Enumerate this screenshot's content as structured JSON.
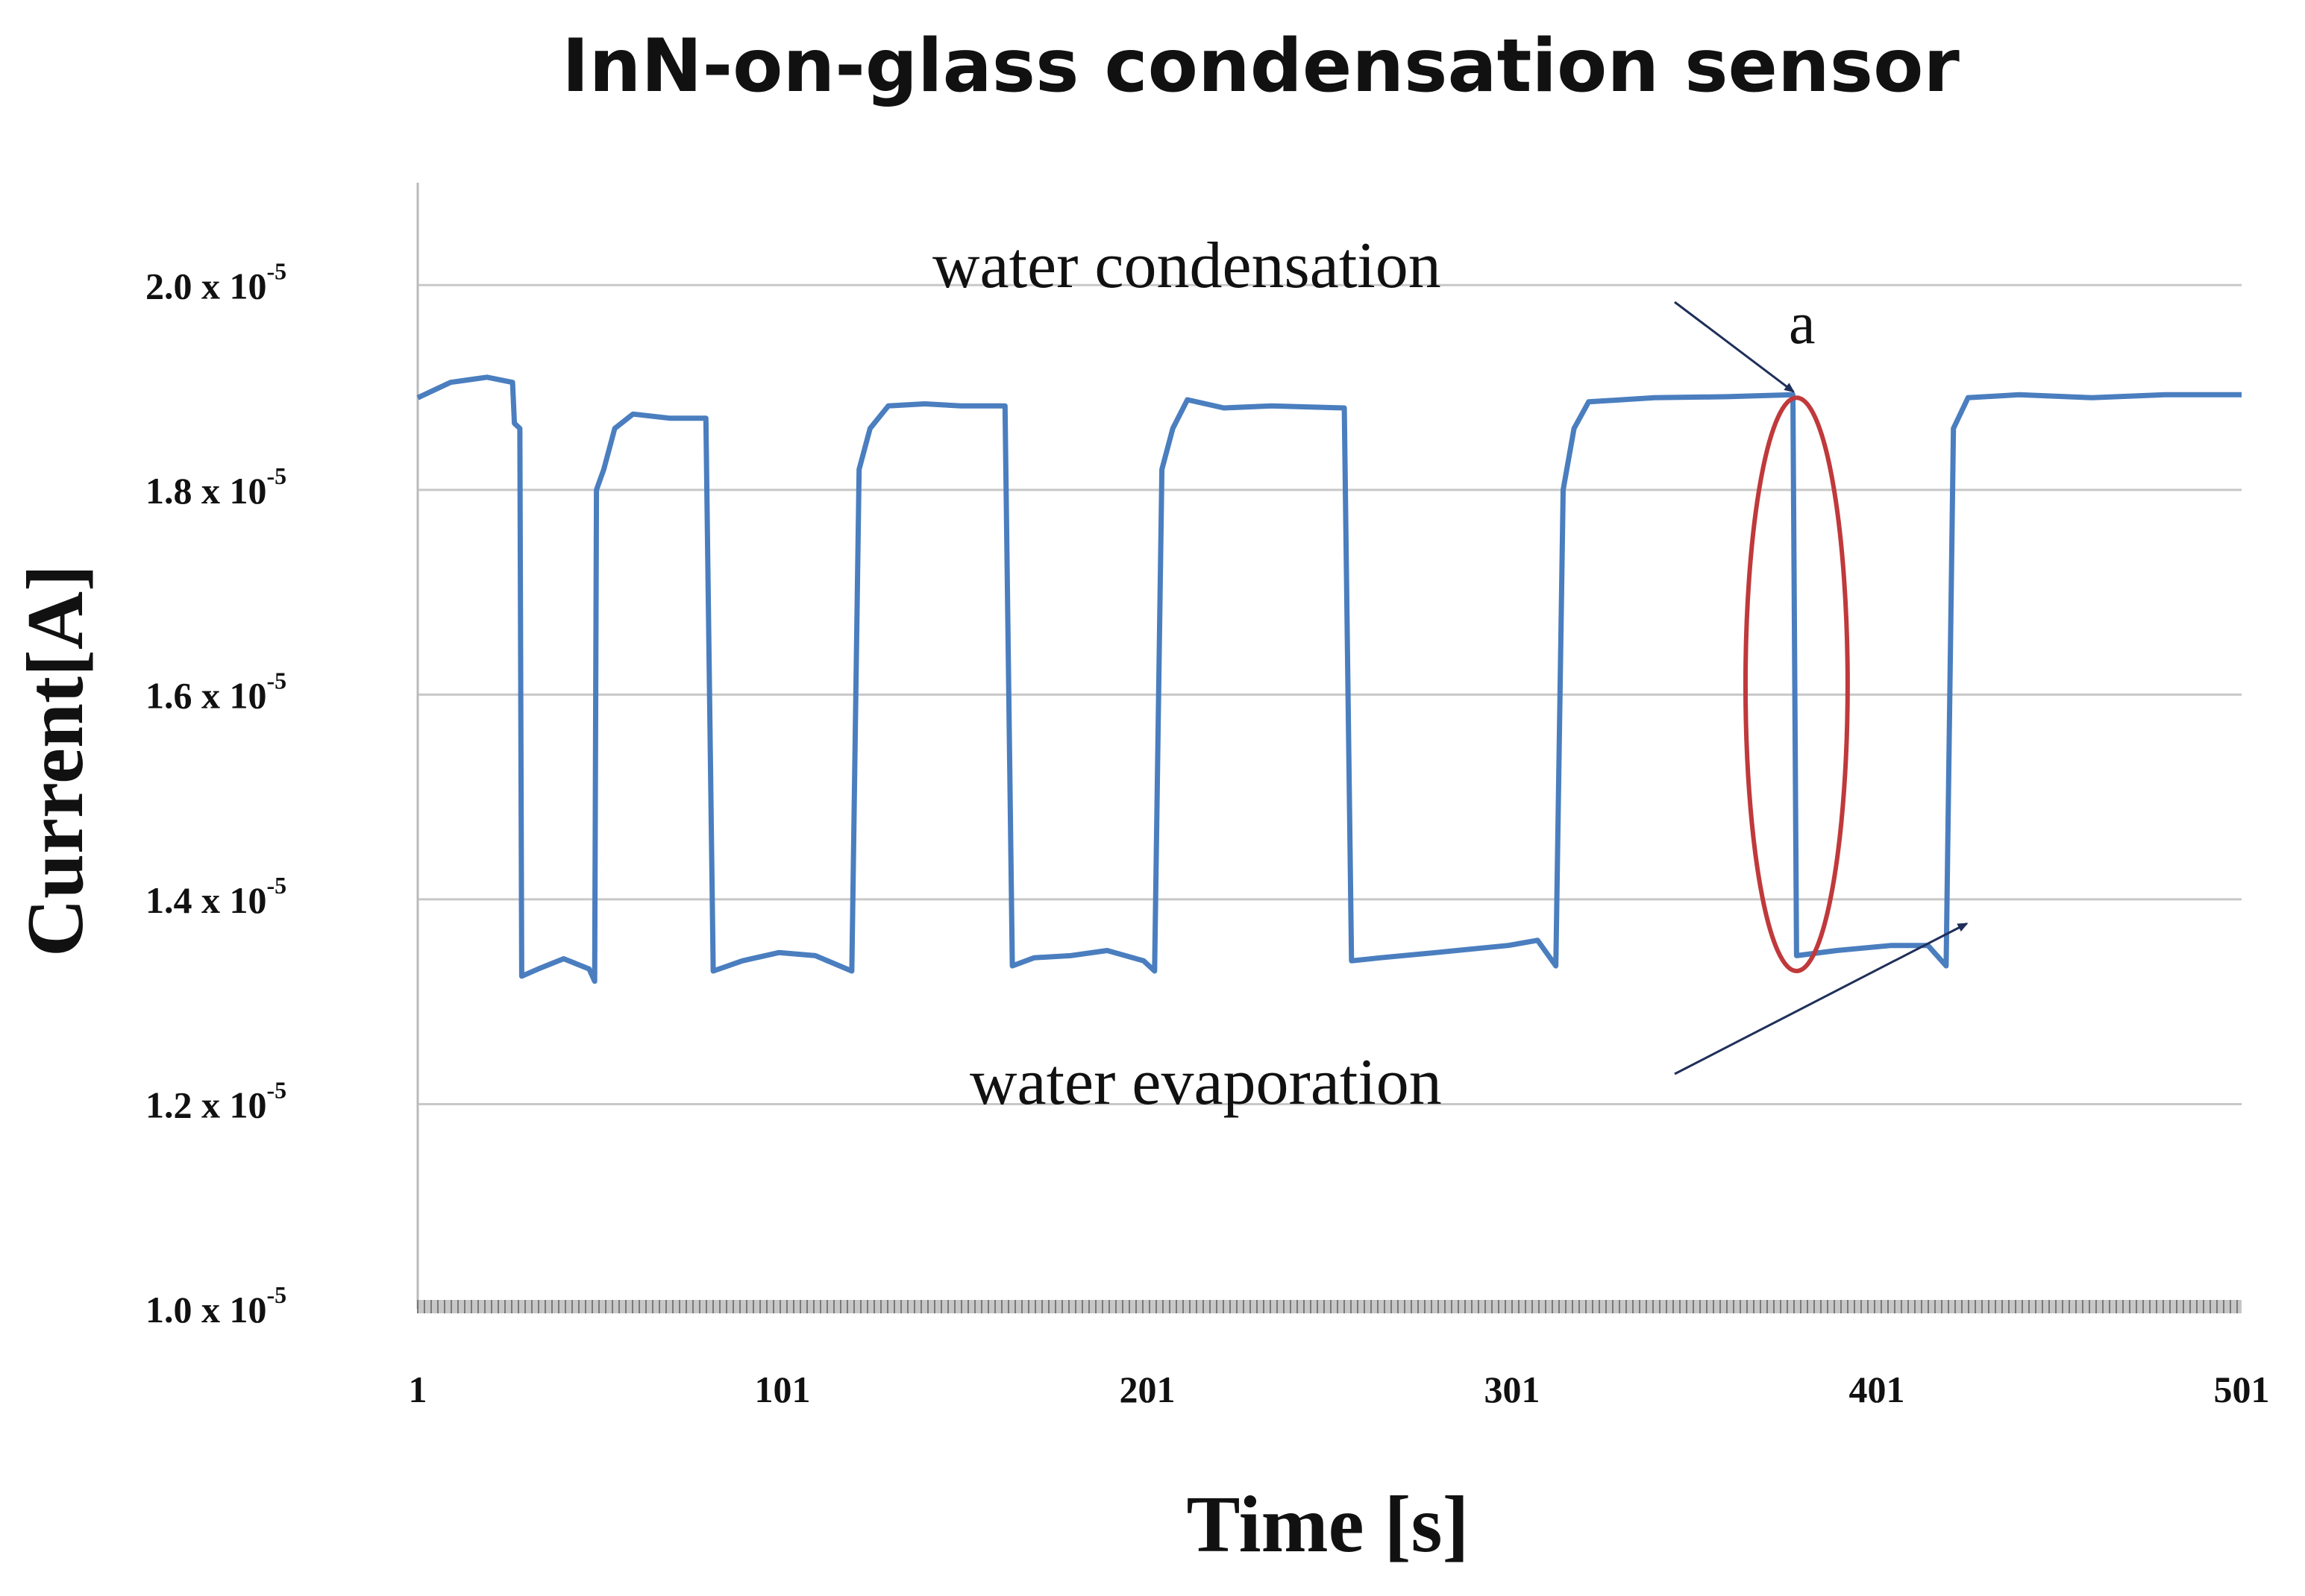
{
  "chart_data": {
    "type": "line",
    "title": "InN-on-glass condensation sensor",
    "xlabel": "Time [s]",
    "ylabel": "Current[A]",
    "xlim": [
      1,
      501
    ],
    "ylim": [
      1e-05,
      2.1e-05
    ],
    "grid": true,
    "x_ticks": [
      {
        "value": 1,
        "label": "1"
      },
      {
        "value": 101,
        "label": "101"
      },
      {
        "value": 201,
        "label": "201"
      },
      {
        "value": 301,
        "label": "301"
      },
      {
        "value": 401,
        "label": "401"
      },
      {
        "value": 501,
        "label": "501"
      }
    ],
    "y_ticks": [
      {
        "value": 1e-05,
        "mantissa": "1.0 x 10",
        "exponent": "-5"
      },
      {
        "value": 1.2e-05,
        "mantissa": "1.2 x 10",
        "exponent": "-5"
      },
      {
        "value": 1.4e-05,
        "mantissa": "1.4 x 10",
        "exponent": "-5"
      },
      {
        "value": 1.6e-05,
        "mantissa": "1.6 x 10",
        "exponent": "-5"
      },
      {
        "value": 1.8e-05,
        "mantissa": "1.8 x 10",
        "exponent": "-5"
      },
      {
        "value": 2e-05,
        "mantissa": "2.0 x 10",
        "exponent": "-5"
      }
    ],
    "series": [
      {
        "name": "current",
        "color": "#4a7ebf",
        "points": [
          [
            1,
            1.89e-05
          ],
          [
            10,
            1.905e-05
          ],
          [
            20,
            1.91e-05
          ],
          [
            27,
            1.905e-05
          ],
          [
            27.5,
            1.865e-05
          ],
          [
            29,
            1.86e-05
          ],
          [
            29.5,
            1.325e-05
          ],
          [
            34,
            1.332e-05
          ],
          [
            41,
            1.342e-05
          ],
          [
            48,
            1.332e-05
          ],
          [
            49.5,
            1.32e-05
          ],
          [
            50,
            1.8e-05
          ],
          [
            52,
            1.82e-05
          ],
          [
            55,
            1.86e-05
          ],
          [
            60,
            1.874e-05
          ],
          [
            70,
            1.87e-05
          ],
          [
            79,
            1.87e-05
          ],
          [
            80,
            1.87e-05
          ],
          [
            82,
            1.33e-05
          ],
          [
            90,
            1.34e-05
          ],
          [
            100,
            1.348e-05
          ],
          [
            110,
            1.345e-05
          ],
          [
            120,
            1.33e-05
          ],
          [
            122,
            1.82e-05
          ],
          [
            125,
            1.86e-05
          ],
          [
            130,
            1.882e-05
          ],
          [
            140,
            1.884e-05
          ],
          [
            150,
            1.882e-05
          ],
          [
            162,
            1.882e-05
          ],
          [
            164,
            1.335e-05
          ],
          [
            170,
            1.343e-05
          ],
          [
            180,
            1.345e-05
          ],
          [
            190,
            1.35e-05
          ],
          [
            200,
            1.34e-05
          ],
          [
            203,
            1.33e-05
          ],
          [
            205,
            1.82e-05
          ],
          [
            208,
            1.86e-05
          ],
          [
            212,
            1.888e-05
          ],
          [
            222,
            1.88e-05
          ],
          [
            235,
            1.882e-05
          ],
          [
            255,
            1.88e-05
          ],
          [
            257,
            1.34e-05
          ],
          [
            265,
            1.343e-05
          ],
          [
            280,
            1.348e-05
          ],
          [
            300,
            1.355e-05
          ],
          [
            308,
            1.36e-05
          ],
          [
            313,
            1.335e-05
          ],
          [
            315,
            1.8e-05
          ],
          [
            318,
            1.86e-05
          ],
          [
            322,
            1.886e-05
          ],
          [
            340,
            1.89e-05
          ],
          [
            360,
            1.891e-05
          ],
          [
            378,
            1.893e-05
          ],
          [
            379,
            1.345e-05
          ],
          [
            390,
            1.35e-05
          ],
          [
            405,
            1.355e-05
          ],
          [
            415,
            1.355e-05
          ],
          [
            420,
            1.335e-05
          ],
          [
            422,
            1.86e-05
          ],
          [
            426,
            1.89e-05
          ],
          [
            440,
            1.893e-05
          ],
          [
            460,
            1.89e-05
          ],
          [
            480,
            1.893e-05
          ],
          [
            501,
            1.893e-05
          ]
        ]
      }
    ],
    "annotations": {
      "condensation_label": "water condensation",
      "evaporation_label": "water evaporation",
      "marker_label": "a",
      "arrow_color": "#1f2f5a",
      "ellipse_color": "#c0393b",
      "ellipse_center": {
        "x": 379,
        "y": 1.61e-05
      },
      "ellipse_half_width_x": 14,
      "ellipse_half_height_y": 2.8e-06,
      "condensation_arrow_target": {
        "x": 379,
        "y": 1.89e-05
      },
      "evaporation_arrow_target": {
        "x": 422,
        "y": 1.38e-05
      }
    },
    "colors": {
      "grid": "#c8c8c8",
      "axis": "#bbbbbb",
      "baseline": "#999999"
    }
  }
}
